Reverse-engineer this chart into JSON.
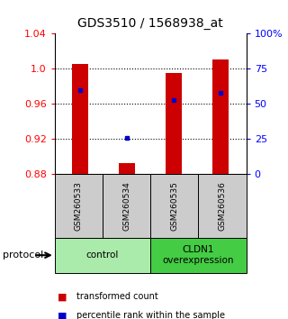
{
  "title": "GDS3510 / 1568938_at",
  "samples": [
    "GSM260533",
    "GSM260534",
    "GSM260535",
    "GSM260536"
  ],
  "bar_bottom": 0.88,
  "bar_tops": [
    1.005,
    0.892,
    0.995,
    1.01
  ],
  "blue_y": [
    0.975,
    0.921,
    0.964,
    0.972
  ],
  "ylim": [
    0.88,
    1.04
  ],
  "yticks_left": [
    0.88,
    0.92,
    0.96,
    1.0,
    1.04
  ],
  "yticks_right": [
    0,
    25,
    50,
    75,
    100
  ],
  "yticks_right_labels": [
    "0",
    "25",
    "50",
    "75",
    "100%"
  ],
  "bar_color": "#cc0000",
  "blue_color": "#0000cc",
  "groups": [
    {
      "label": "control",
      "samples": [
        0,
        1
      ],
      "color": "#aaeaaa"
    },
    {
      "label": "CLDN1\noverexpression",
      "samples": [
        2,
        3
      ],
      "color": "#44cc44"
    }
  ],
  "protocol_label": "protocol",
  "legend_red": "transformed count",
  "legend_blue": "percentile rank within the sample",
  "background_color": "#ffffff",
  "sample_box_color": "#cccccc",
  "bar_width": 0.35
}
